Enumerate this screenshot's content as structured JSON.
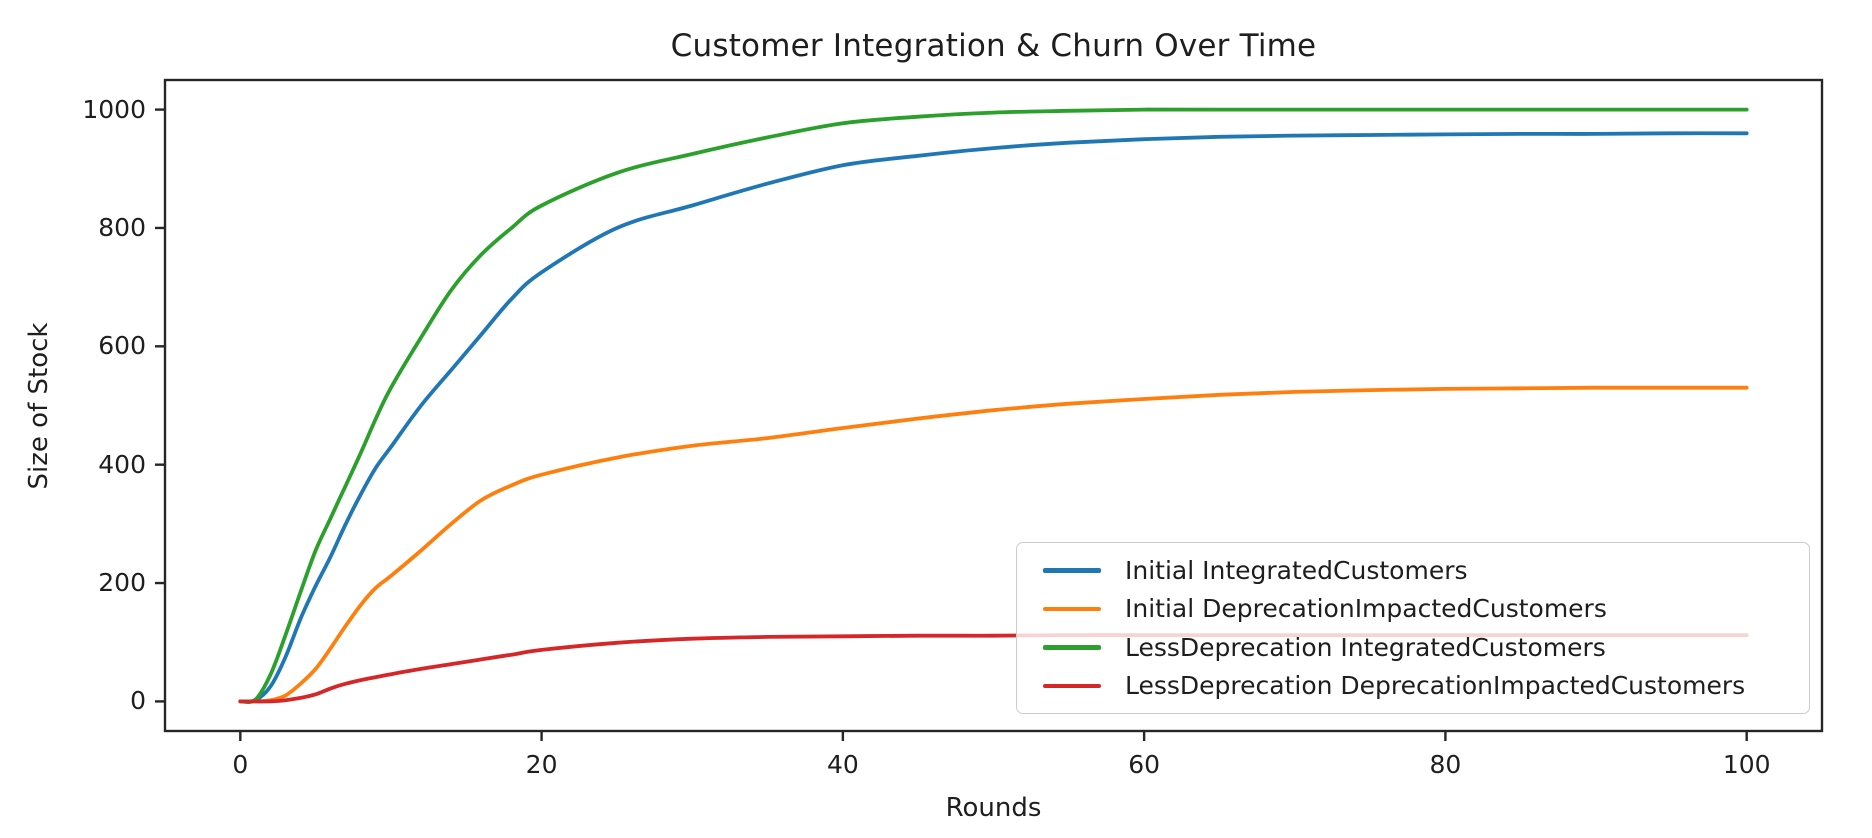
{
  "chart_data": {
    "type": "line",
    "title": "Customer Integration & Churn Over Time",
    "xlabel": "Rounds",
    "ylabel": "Size of Stock",
    "xlim": [
      -5,
      105
    ],
    "ylim": [
      -50,
      1050
    ],
    "xticks": [
      0,
      20,
      40,
      60,
      80,
      100
    ],
    "yticks": [
      0,
      200,
      400,
      600,
      800,
      1000
    ],
    "grid": false,
    "legend_position": "lower-right-inside",
    "x": [
      0,
      1,
      2,
      3,
      4,
      5,
      6,
      7,
      8,
      9,
      10,
      12,
      14,
      16,
      18,
      20,
      25,
      30,
      35,
      40,
      45,
      50,
      55,
      60,
      65,
      70,
      75,
      80,
      85,
      90,
      95,
      100
    ],
    "series": [
      {
        "name": "Initial IntegratedCustomers",
        "color": "#1f77b4",
        "values": [
          0,
          2,
          25,
          75,
          140,
          195,
          245,
          300,
          350,
          395,
          430,
          500,
          560,
          620,
          680,
          725,
          800,
          838,
          875,
          906,
          922,
          935,
          944,
          950,
          954,
          956,
          957,
          958,
          959,
          959,
          960,
          960
        ]
      },
      {
        "name": "Initial DeprecationImpactedCustomers",
        "color": "#ff7f0e",
        "values": [
          0,
          0,
          2,
          10,
          30,
          55,
          90,
          128,
          163,
          192,
          212,
          255,
          300,
          340,
          365,
          383,
          412,
          432,
          445,
          462,
          478,
          492,
          503,
          511,
          518,
          523,
          526,
          528,
          529,
          530,
          530,
          530
        ]
      },
      {
        "name": "LessDeprecation IntegratedCustomers",
        "color": "#2ca02c",
        "values": [
          0,
          3,
          45,
          112,
          185,
          255,
          310,
          365,
          420,
          478,
          530,
          615,
          695,
          755,
          800,
          838,
          893,
          925,
          953,
          977,
          988,
          995,
          998,
          1000,
          1000,
          1000,
          1000,
          1000,
          1000,
          1000,
          1000,
          1000
        ]
      },
      {
        "name": "LessDeprecation DeprecationImpactedCustomers",
        "color": "#d62728",
        "values": [
          0,
          0,
          0,
          2,
          6,
          12,
          22,
          30,
          36,
          41,
          46,
          55,
          63,
          71,
          79,
          87,
          99,
          106,
          109,
          110,
          111,
          111,
          112,
          112,
          112,
          112,
          112,
          112,
          112,
          112,
          112,
          112
        ]
      }
    ],
    "style": {
      "spine_color": "#262626",
      "text_color": "#1e1e1e",
      "legend_border_color": "#cccccc",
      "line_width": 3.8
    }
  }
}
